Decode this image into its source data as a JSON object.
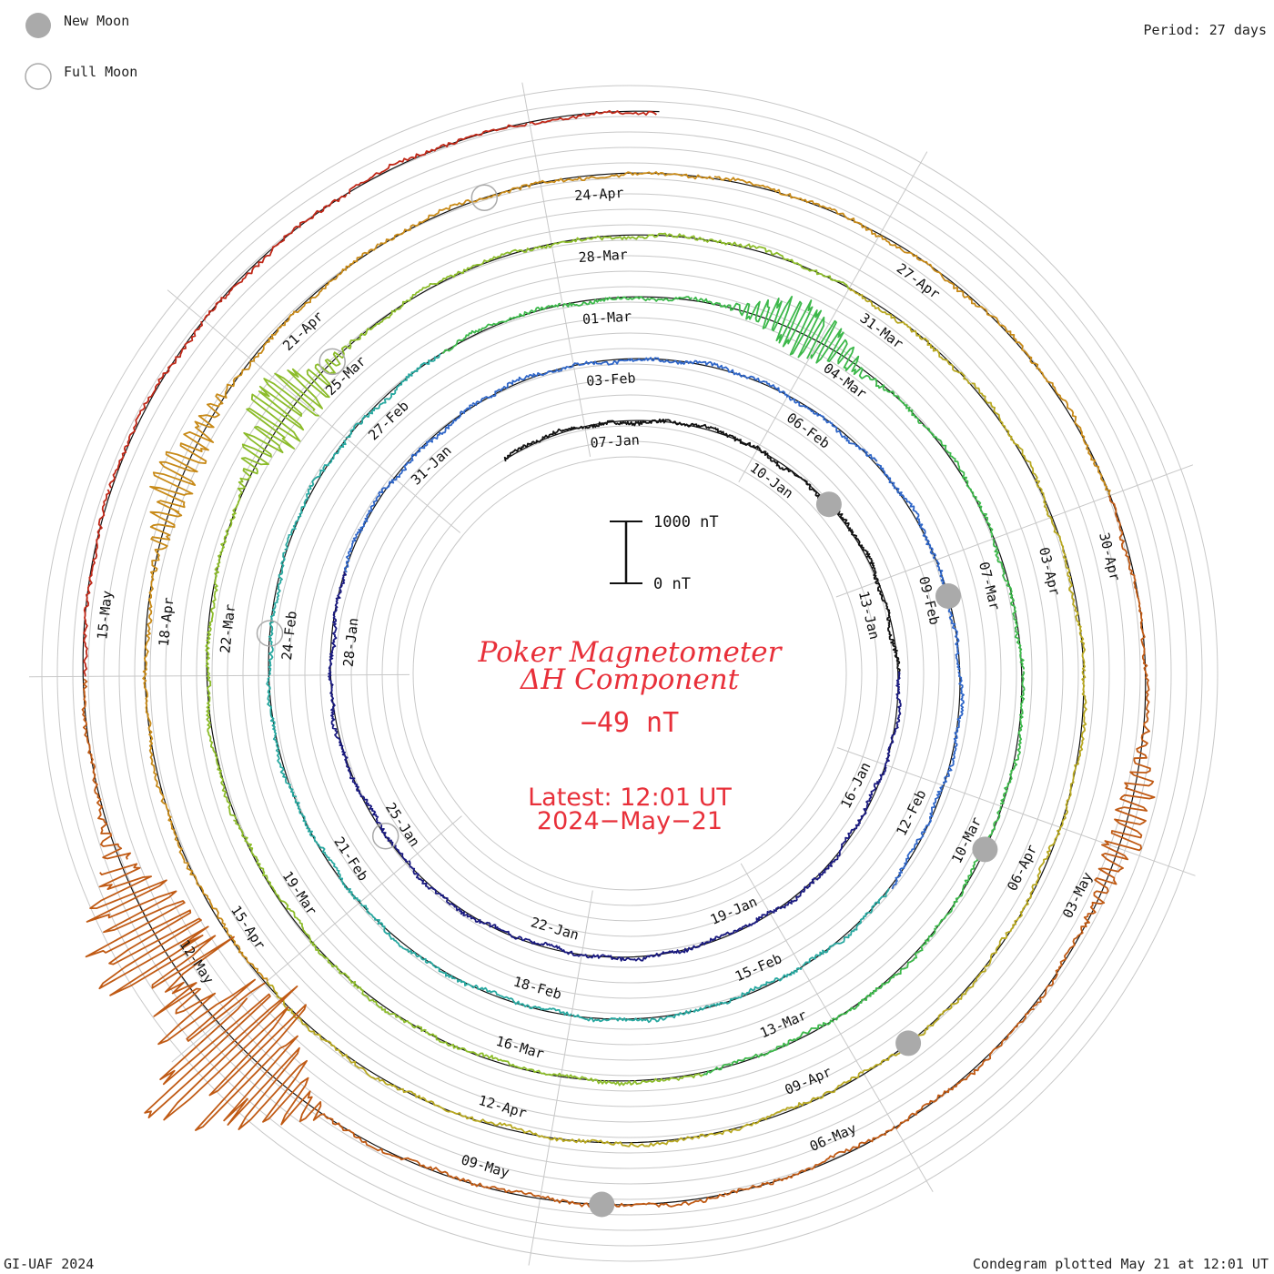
{
  "header": {
    "legend": [
      {
        "label": "New Moon",
        "symbol": "new-moon",
        "color": "#aaaaaa"
      },
      {
        "label": "Full Moon",
        "symbol": "full-moon",
        "color": "#aaaaaa"
      }
    ],
    "period": "Period: 27 days"
  },
  "footer": {
    "credit": "GI-UAF 2024",
    "plotted": "Condegram plotted May 21 at 12:01 UT"
  },
  "center": {
    "title_line1": "Poker Magnetometer",
    "title_line2": "ΔH Component",
    "current_value": "−49 nT",
    "latest_time": "Latest: 12:01 UT",
    "latest_date": "2024−May−21",
    "scale_top": "1000 nT",
    "scale_bottom": "0 nT"
  },
  "chart_data": {
    "type": "line",
    "subtype": "condegram-spiral",
    "title": "Poker Magnetometer ΔH Component",
    "period_days": 27,
    "start_date": "2024-01-05",
    "end_date": "2024-05-21",
    "scale_bar": {
      "min_nT": 0,
      "max_nT": 1000
    },
    "latest_value_nT": -49,
    "latest_time": "12:01 UT",
    "grid": true,
    "colors": [
      "#111111",
      "#1a1a80",
      "#2f66c8",
      "#27a8a0",
      "#3cb84a",
      "#8cbc2a",
      "#b8a820",
      "#c88a18",
      "#c05a14",
      "#c02818"
    ],
    "date_labels": [
      "07-Jan",
      "10-Jan",
      "13-Jan",
      "16-Jan",
      "19-Jan",
      "22-Jan",
      "25-Jan",
      "28-Jan",
      "31-Jan",
      "03-Feb",
      "06-Feb",
      "09-Feb",
      "12-Feb",
      "15-Feb",
      "18-Feb",
      "21-Feb",
      "24-Feb",
      "27-Feb",
      "01-Mar",
      "04-Mar",
      "07-Mar",
      "10-Mar",
      "13-Mar",
      "16-Mar",
      "19-Mar",
      "22-Mar",
      "25-Mar",
      "28-Mar",
      "31-Mar",
      "03-Apr",
      "06-Apr",
      "09-Apr",
      "12-Apr",
      "15-Apr",
      "18-Apr",
      "21-Apr",
      "24-Apr",
      "27-Apr",
      "30-Apr",
      "03-May",
      "06-May",
      "09-May",
      "12-May",
      "15-May"
    ],
    "new_moons": [
      "2024-01-11",
      "2024-02-09",
      "2024-03-10",
      "2024-04-08",
      "2024-05-08"
    ],
    "full_moons": [
      "2024-01-25",
      "2024-02-24",
      "2024-03-25",
      "2024-04-23"
    ],
    "disturbances": [
      {
        "date": "2024-03-03",
        "peak_nT": 600
      },
      {
        "date": "2024-03-24",
        "peak_nT": 700
      },
      {
        "date": "2024-04-19",
        "peak_nT": 450
      },
      {
        "date": "2024-05-02",
        "peak_nT": 400
      },
      {
        "date": "2024-05-11",
        "peak_nT": 2000
      },
      {
        "date": "2024-05-12",
        "peak_nT": 1400
      }
    ]
  }
}
